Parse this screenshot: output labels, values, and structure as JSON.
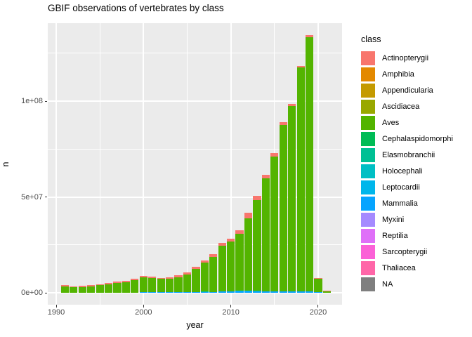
{
  "title": "GBIF observations of vertebrates by class",
  "axes": {
    "x": {
      "title": "year",
      "ticks": [
        {
          "value": 1990,
          "label": "1990"
        },
        {
          "value": 2000,
          "label": "2000"
        },
        {
          "value": 2010,
          "label": "2010"
        },
        {
          "value": 2020,
          "label": "2020"
        }
      ],
      "minor": [
        1995,
        2005,
        2015
      ]
    },
    "y": {
      "title": "n",
      "ticks": [
        {
          "value": 0,
          "label": "0e+00"
        },
        {
          "value": 50000000,
          "label": "5e+07"
        },
        {
          "value": 100000000,
          "label": "1e+08"
        }
      ],
      "minor": [
        25000000,
        75000000,
        125000000
      ]
    }
  },
  "legend": {
    "title": "class",
    "items": [
      {
        "label": "Actinopterygii",
        "color": "#F8766D"
      },
      {
        "label": "Amphibia",
        "color": "#E38900"
      },
      {
        "label": "Appendicularia",
        "color": "#C49A00"
      },
      {
        "label": "Ascidiacea",
        "color": "#99A800"
      },
      {
        "label": "Aves",
        "color": "#53B400"
      },
      {
        "label": "Cephalaspidomorphi",
        "color": "#00BC56"
      },
      {
        "label": "Elasmobranchii",
        "color": "#00C094"
      },
      {
        "label": "Holocephali",
        "color": "#00BFC4"
      },
      {
        "label": "Leptocardii",
        "color": "#00B6EB"
      },
      {
        "label": "Mammalia",
        "color": "#06A4FF"
      },
      {
        "label": "Myxini",
        "color": "#A58AFF"
      },
      {
        "label": "Reptilia",
        "color": "#DF70F8"
      },
      {
        "label": "Sarcopterygii",
        "color": "#FB61D7"
      },
      {
        "label": "Thaliacea",
        "color": "#FF66A8"
      },
      {
        "label": "NA",
        "color": "#7F7F7F"
      }
    ]
  },
  "chart_data": {
    "type": "bar",
    "stacked": true,
    "title": "GBIF observations of vertebrates by class",
    "xlabel": "year",
    "ylabel": "n",
    "ylim": [
      0,
      140000000
    ],
    "grid": true,
    "legend_position": "right",
    "x": [
      1991,
      1992,
      1993,
      1994,
      1995,
      1996,
      1997,
      1998,
      1999,
      2000,
      2001,
      2002,
      2003,
      2004,
      2005,
      2006,
      2007,
      2008,
      2009,
      2010,
      2011,
      2012,
      2013,
      2014,
      2015,
      2016,
      2017,
      2018,
      2019,
      2020,
      2021
    ],
    "stack_order_top_to_bottom": [
      "Actinopterygii",
      "Aves",
      "Elasmobranchii",
      "Leptocardii",
      "Mammalia"
    ],
    "series": [
      {
        "name": "Actinopterygii",
        "color": "#F8766D",
        "values": [
          550000,
          450000,
          500000,
          500000,
          550000,
          600000,
          650000,
          700000,
          800000,
          900000,
          700000,
          650000,
          700000,
          800000,
          900000,
          1100000,
          1200000,
          1300000,
          1500000,
          1600000,
          1900000,
          2900000,
          2200000,
          1800000,
          1800000,
          1500000,
          1100000,
          800000,
          1100000,
          300000,
          150000
        ]
      },
      {
        "name": "Aves",
        "color": "#53B400",
        "values": [
          3450000,
          2850000,
          3100000,
          3350000,
          3850000,
          4500000,
          5050000,
          5500000,
          6500000,
          7650000,
          7250000,
          6850000,
          7100000,
          7850000,
          9200000,
          11900000,
          15000000,
          18200000,
          23900000,
          25900000,
          29650000,
          37600000,
          47050000,
          58900000,
          70400000,
          86700000,
          96500000,
          116600000,
          132400000,
          7000000,
          950000
        ]
      },
      {
        "name": "Elasmobranchii",
        "color": "#00C094",
        "values": [
          0,
          0,
          0,
          0,
          0,
          0,
          0,
          0,
          0,
          0,
          0,
          0,
          0,
          0,
          0,
          0,
          300000,
          0,
          0,
          0,
          0,
          0,
          350000,
          0,
          0,
          0,
          0,
          0,
          0,
          0,
          0
        ]
      },
      {
        "name": "Leptocardii",
        "color": "#00B6EB",
        "values": [
          0,
          0,
          0,
          0,
          0,
          0,
          0,
          0,
          0,
          0,
          0,
          0,
          0,
          0,
          0,
          0,
          0,
          0,
          0,
          0,
          350000,
          300000,
          0,
          0,
          0,
          0,
          0,
          0,
          0,
          0,
          0
        ]
      },
      {
        "name": "Mammalia",
        "color": "#06A4FF",
        "values": [
          0,
          0,
          0,
          0,
          0,
          0,
          0,
          0,
          0,
          350000,
          350000,
          300000,
          300000,
          350000,
          400000,
          500000,
          500000,
          500000,
          600000,
          700000,
          700000,
          800000,
          800000,
          800000,
          800000,
          800000,
          900000,
          900000,
          900000,
          500000,
          0
        ]
      }
    ],
    "note": "Other legend classes (Amphibia, Appendicularia, Ascidiacea, Cephalaspidomorphi, Holocephali, Myxini, Reptilia, Sarcopterygii, Thaliacea, NA) are visually negligible (~0) in the bars."
  },
  "theme": {
    "panel_bg": "#EBEBEB",
    "grid_color": "#FFFFFF",
    "tick_label_color": "#4D4D4D",
    "text_color": "#000000"
  }
}
